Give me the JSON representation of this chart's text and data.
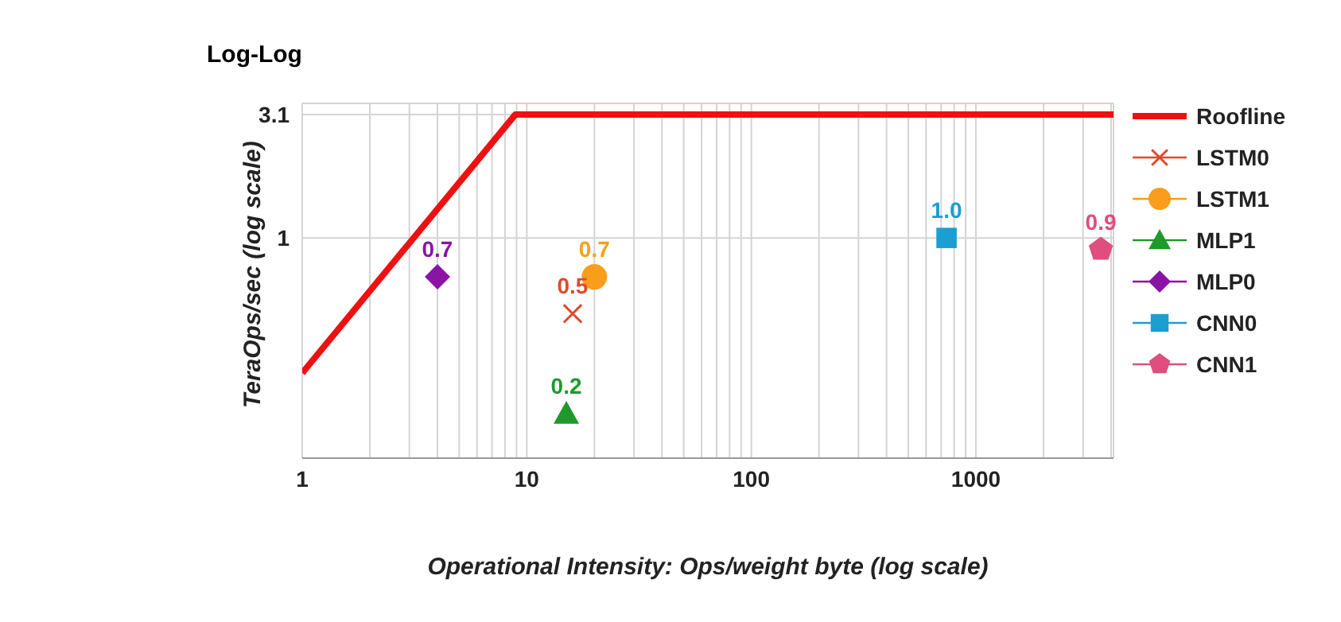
{
  "chart_data": {
    "type": "scatter",
    "title": "Log-Log",
    "xlabel": "Operational Intensity: Ops/weight byte (log scale)",
    "ylabel": "TeraOps/sec (log scale)",
    "log": "xy",
    "grid": true,
    "legend": "right",
    "xlim": [
      1,
      4100
    ],
    "ylim": [
      0.133,
      3.43
    ],
    "xticks": [
      1,
      {
        "value": 2,
        "label": null
      },
      {
        "value": 3,
        "label": null
      },
      {
        "value": 4,
        "label": null
      },
      {
        "value": 5,
        "label": null
      },
      {
        "value": 6,
        "label": null
      },
      {
        "value": 7,
        "label": null
      },
      {
        "value": 8,
        "label": null
      },
      {
        "value": 9,
        "label": null
      },
      10,
      {
        "value": 20,
        "label": null
      },
      {
        "value": 30,
        "label": null
      },
      {
        "value": 40,
        "label": null
      },
      {
        "value": 50,
        "label": null
      },
      {
        "value": 60,
        "label": null
      },
      {
        "value": 70,
        "label": null
      },
      {
        "value": 80,
        "label": null
      },
      {
        "value": 90,
        "label": null
      },
      100,
      {
        "value": 200,
        "label": null
      },
      {
        "value": 300,
        "label": null
      },
      {
        "value": 400,
        "label": null
      },
      {
        "value": 500,
        "label": null
      },
      {
        "value": 600,
        "label": null
      },
      {
        "value": 700,
        "label": null
      },
      {
        "value": 800,
        "label": null
      },
      {
        "value": 900,
        "label": null
      },
      1000,
      {
        "value": 2000,
        "label": null
      },
      {
        "value": 3000,
        "label": null
      },
      {
        "value": 4000,
        "label": null
      }
    ],
    "yticks": [
      1,
      3.1
    ],
    "series": [
      {
        "name": "Roofline",
        "type": "line",
        "color": "#ee1111",
        "marker": "none",
        "x": [
          1,
          8.9,
          4100
        ],
        "values": [
          0.29,
          3.1,
          3.1
        ]
      },
      {
        "name": "LSTM0",
        "color": "#dd4a2e",
        "marker": "cross",
        "x": [
          16
        ],
        "values": [
          0.5
        ],
        "value_labels": [
          "0.5"
        ]
      },
      {
        "name": "LSTM1",
        "color": "#f99d1c",
        "marker": "circle",
        "x": [
          20
        ],
        "values": [
          0.7
        ],
        "value_labels": [
          "0.7"
        ]
      },
      {
        "name": "MLP1",
        "color": "#1f9a2a",
        "marker": "triangle",
        "x": [
          15
        ],
        "values": [
          0.2
        ],
        "value_labels": [
          "0.2"
        ]
      },
      {
        "name": "MLP0",
        "color": "#8a14a6",
        "marker": "diamond",
        "x": [
          4
        ],
        "values": [
          0.7
        ],
        "value_labels": [
          "0.7"
        ]
      },
      {
        "name": "CNN0",
        "color": "#1a9fd0",
        "marker": "square",
        "x": [
          740
        ],
        "values": [
          1.0
        ],
        "value_labels": [
          "1.0"
        ]
      },
      {
        "name": "CNN1",
        "color": "#e04d7f",
        "x": [
          3600
        ],
        "values": [
          0.9
        ],
        "value_labels": [
          "0.9"
        ]
      }
    ]
  }
}
